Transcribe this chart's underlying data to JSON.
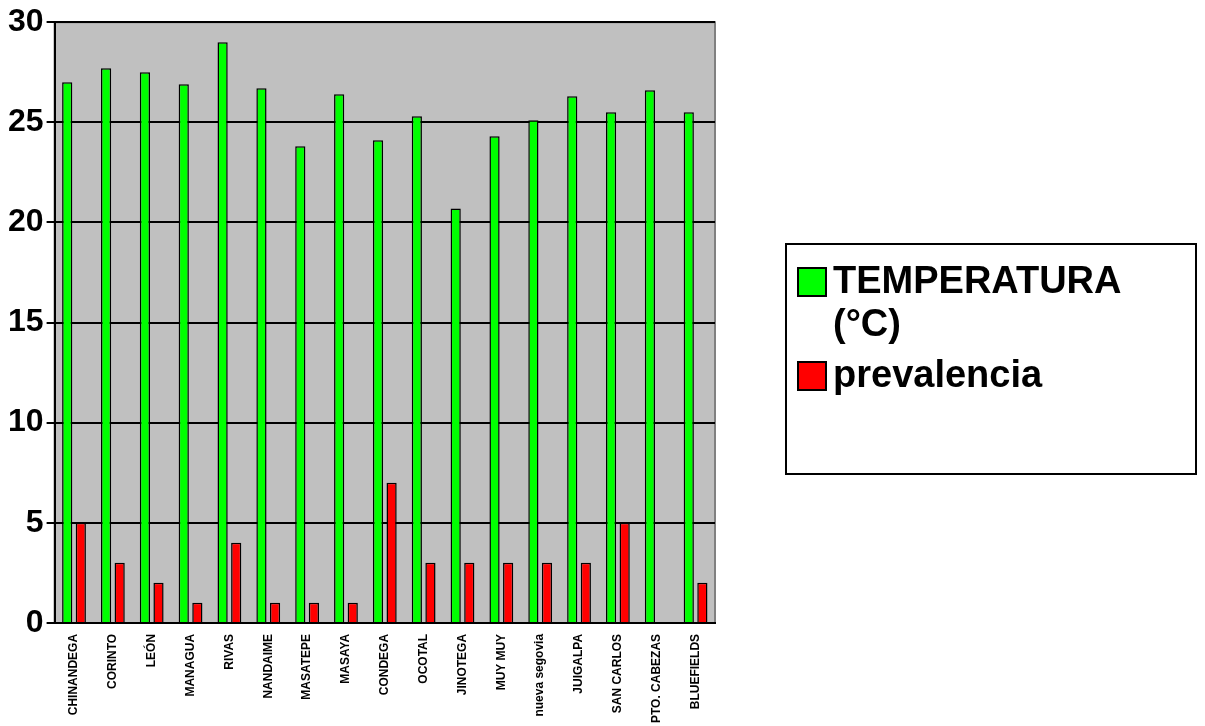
{
  "chart_data": {
    "type": "bar",
    "categories": [
      "CHINANDEGA",
      "CORINTO",
      "LEÓN",
      "MANAGUA",
      "RIVAS",
      "NANDAIME",
      "MASATEPE",
      "MASAYA",
      "CONDEGA",
      "OCOTAL",
      "JINOTEGA",
      "MUY MUY",
      "nueva segovia",
      "JUIGALPA",
      "SAN CARLOS",
      "PTO. CABEZAS",
      "BLUEFIELDS"
    ],
    "series": [
      {
        "name": "TEMPERATURA (°C)",
        "color": "#00ff00",
        "values": [
          27.0,
          27.7,
          27.5,
          26.9,
          29.0,
          26.7,
          23.8,
          26.4,
          24.1,
          25.3,
          20.7,
          24.3,
          25.1,
          26.3,
          25.5,
          26.6,
          25.5
        ]
      },
      {
        "name": "prevalencia",
        "color": "#ff0000",
        "values": [
          5,
          3,
          2,
          1,
          4,
          1,
          1,
          1,
          7,
          3,
          3,
          3,
          3,
          3,
          5,
          0,
          2
        ]
      }
    ],
    "ylim": [
      0,
      30
    ],
    "yticks": [
      0,
      5,
      10,
      15,
      20,
      25,
      30
    ],
    "grid": "y",
    "legend": "right"
  }
}
